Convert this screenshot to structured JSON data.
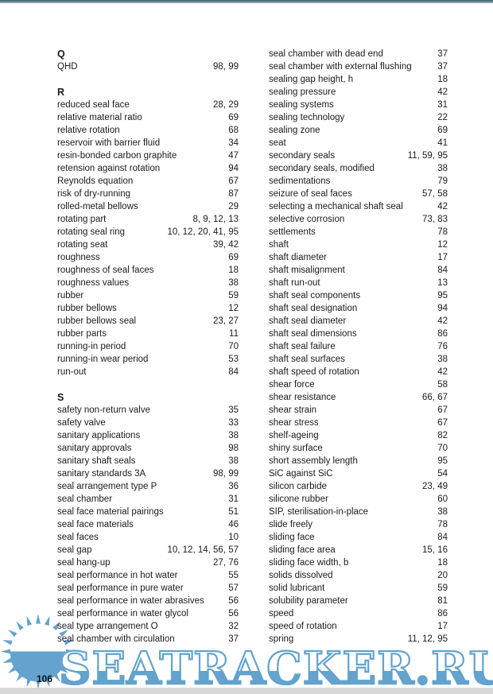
{
  "page": {
    "number": "106"
  },
  "colors": {
    "watermark_blue": "#63a3cd",
    "top_border": "#4f6f7e",
    "bottom_strip": "#d8d8d8",
    "text": "#1b1b1b"
  },
  "watermark": {
    "text": "SEATRACKER.RU",
    "icon": "sun-logo"
  },
  "index": {
    "left_column": {
      "sections": [
        {
          "heading": "Q",
          "entries": [
            {
              "term": "QHD",
              "pages": "98, 99"
            }
          ]
        },
        {
          "heading": "R",
          "entries": [
            {
              "term": "reduced seal face",
              "pages": "28, 29"
            },
            {
              "term": "relative material ratio",
              "pages": "69"
            },
            {
              "term": "relative rotation",
              "pages": "68"
            },
            {
              "term": "reservoir with barrier fluid",
              "pages": "34"
            },
            {
              "term": "resin-bonded carbon graphite",
              "pages": "47"
            },
            {
              "term": "retension against rotation",
              "pages": "94"
            },
            {
              "term": "Reynolds equation",
              "pages": "67"
            },
            {
              "term": "risk of dry-running",
              "pages": "87"
            },
            {
              "term": "rolled-metal bellows",
              "pages": "29"
            },
            {
              "term": "rotating part",
              "pages": "8, 9, 12, 13"
            },
            {
              "term": "rotating seal ring",
              "pages": "10, 12, 20, 41, 95"
            },
            {
              "term": "rotating seat",
              "pages": "39, 42"
            },
            {
              "term": "roughness",
              "pages": "69"
            },
            {
              "term": "roughness of seal faces",
              "pages": "18"
            },
            {
              "term": "roughness values",
              "pages": "38"
            },
            {
              "term": "rubber",
              "pages": "59"
            },
            {
              "term": "rubber bellows",
              "pages": "12"
            },
            {
              "term": "rubber bellows seal",
              "pages": "23, 27"
            },
            {
              "term": "rubber parts",
              "pages": "11"
            },
            {
              "term": "running-in period",
              "pages": "70"
            },
            {
              "term": "running-in wear period",
              "pages": "53"
            },
            {
              "term": "run-out",
              "pages": "84"
            }
          ]
        },
        {
          "heading": "S",
          "entries": [
            {
              "term": "safety non-return valve",
              "pages": "35"
            },
            {
              "term": "safety valve",
              "pages": "33"
            },
            {
              "term": "sanitary applications",
              "pages": "38"
            },
            {
              "term": "sanitary approvals",
              "pages": "98"
            },
            {
              "term": "sanitary shaft seals",
              "pages": "38"
            },
            {
              "term": "sanitary standards 3A",
              "pages": "98, 99"
            },
            {
              "term": "seal arrangement type P",
              "pages": "36"
            },
            {
              "term": "seal chamber",
              "pages": "31"
            },
            {
              "term": "seal face material pairings",
              "pages": "51"
            },
            {
              "term": "seal face materials",
              "pages": "46"
            },
            {
              "term": "seal faces",
              "pages": "10"
            },
            {
              "term": "seal gap",
              "pages": "10, 12, 14, 56, 57"
            },
            {
              "term": "seal hang-up",
              "pages": "27, 76"
            },
            {
              "term": "seal performance in hot water",
              "pages": "55"
            },
            {
              "term": "seal performance in pure water",
              "pages": "57"
            },
            {
              "term": "seal performance in water abrasives",
              "pages": "56"
            },
            {
              "term": "seal performance in water glycol",
              "pages": "56"
            },
            {
              "term": "seal type arrangement O",
              "pages": "32"
            },
            {
              "term": "seal chamber with circulation",
              "pages": "37"
            }
          ]
        }
      ]
    },
    "right_column": {
      "sections": [
        {
          "heading": "",
          "entries": [
            {
              "term": "seal chamber with dead end",
              "pages": "37"
            },
            {
              "term": "seal chamber with external flushing",
              "pages": "37"
            },
            {
              "term": "sealing gap height, h",
              "pages": "18"
            },
            {
              "term": "sealing pressure",
              "pages": "42"
            },
            {
              "term": "sealing systems",
              "pages": "31"
            },
            {
              "term": "sealing technology",
              "pages": "22"
            },
            {
              "term": "sealing zone",
              "pages": "69"
            },
            {
              "term": "seat",
              "pages": "41"
            },
            {
              "term": "secondary seals",
              "pages": "11, 59, 95"
            },
            {
              "term": "secondary seals, modified",
              "pages": "38"
            },
            {
              "term": "sedimentations",
              "pages": "79"
            },
            {
              "term": "seizure of seal faces",
              "pages": "57, 58"
            },
            {
              "term": "selecting a mechanical shaft seal",
              "pages": "42"
            },
            {
              "term": "selective corrosion",
              "pages": "73, 83"
            },
            {
              "term": "settlements",
              "pages": "78"
            },
            {
              "term": "shaft",
              "pages": "12"
            },
            {
              "term": "shaft diameter",
              "pages": "17"
            },
            {
              "term": "shaft misalignment",
              "pages": "84"
            },
            {
              "term": "shaft run-out",
              "pages": "13"
            },
            {
              "term": "shaft seal components",
              "pages": "95"
            },
            {
              "term": "shaft seal designation",
              "pages": "94"
            },
            {
              "term": "shaft seal diameter",
              "pages": "42"
            },
            {
              "term": "shaft seal dimensions",
              "pages": "86"
            },
            {
              "term": "shaft seal failure",
              "pages": "76"
            },
            {
              "term": "shaft seal surfaces",
              "pages": "38"
            },
            {
              "term": "shaft speed of rotation",
              "pages": "42"
            },
            {
              "term": "shear force",
              "pages": "58"
            },
            {
              "term": "shear resistance",
              "pages": "66, 67"
            },
            {
              "term": "shear strain",
              "pages": "67"
            },
            {
              "term": "shear stress",
              "pages": "67"
            },
            {
              "term": "shelf-ageing",
              "pages": "82"
            },
            {
              "term": "shiny surface",
              "pages": "70"
            },
            {
              "term": "short assembly length",
              "pages": "95"
            },
            {
              "term": "SiC against SiC",
              "pages": "54"
            },
            {
              "term": "silicon carbide",
              "pages": "23, 49"
            },
            {
              "term": "silicone rubber",
              "pages": "60"
            },
            {
              "term": "SIP, sterilisation-in-place",
              "pages": "38"
            },
            {
              "term": "slide freely",
              "pages": "78"
            },
            {
              "term": "sliding face",
              "pages": "84"
            },
            {
              "term": "sliding face area",
              "pages": "15, 16"
            },
            {
              "term": "sliding face width, b",
              "pages": "18"
            },
            {
              "term": "solids dissolved",
              "pages": "20"
            },
            {
              "term": "solid lubricant",
              "pages": "59"
            },
            {
              "term": "solubility parameter",
              "pages": "81"
            },
            {
              "term": "speed",
              "pages": "86"
            },
            {
              "term": "speed of rotation",
              "pages": "17"
            },
            {
              "term": "spring",
              "pages": "11, 12, 95"
            }
          ]
        }
      ]
    }
  }
}
